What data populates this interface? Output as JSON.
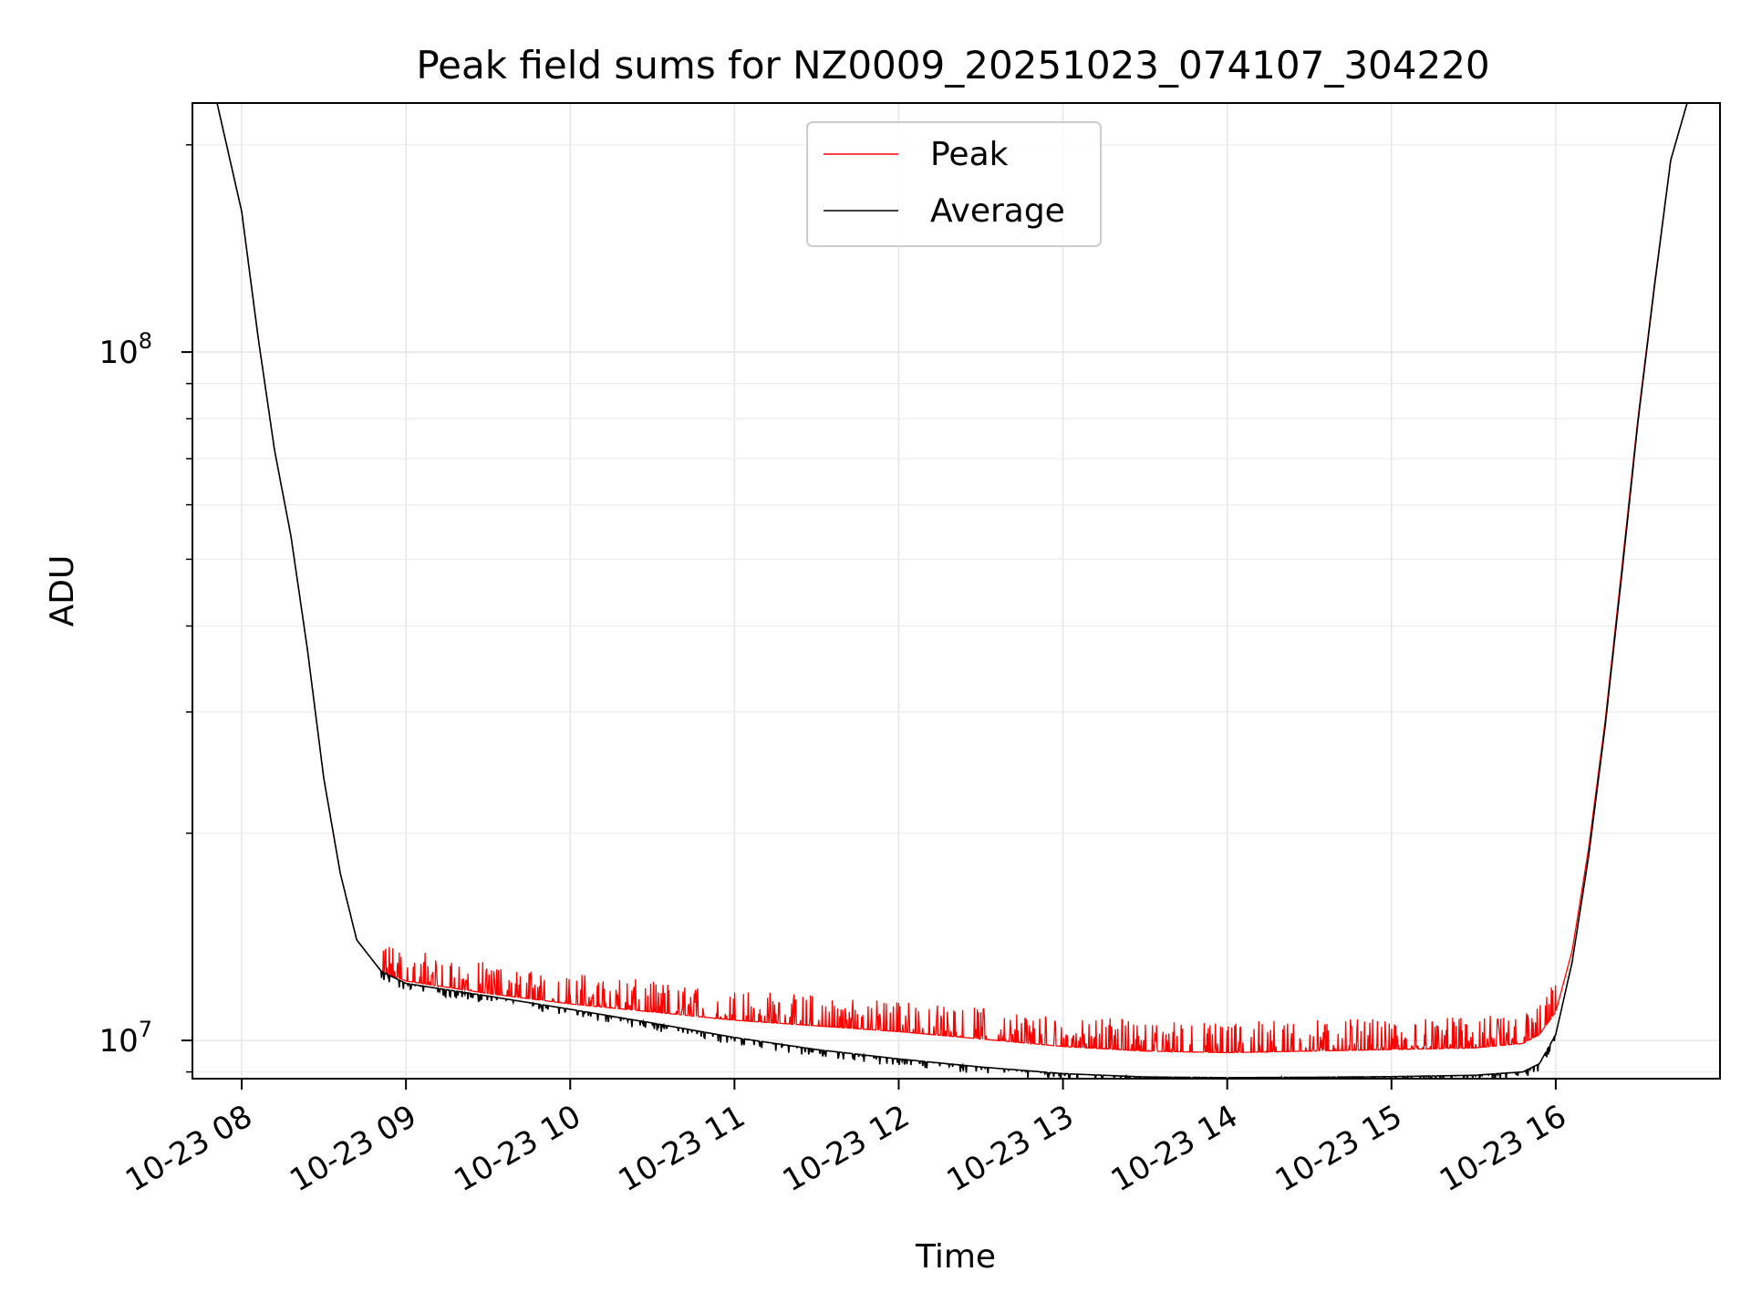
{
  "chart_data": {
    "type": "line",
    "title": "Peak field sums for NZ0009_20251023_074107_304220",
    "xlabel": "Time",
    "ylabel": "ADU",
    "yscale": "log",
    "xlim": [
      7.7,
      17.0
    ],
    "ylim": [
      8800000,
      230000000
    ],
    "x_ticks": [
      {
        "value": 8,
        "label": "10-23 08"
      },
      {
        "value": 9,
        "label": "10-23 09"
      },
      {
        "value": 10,
        "label": "10-23 10"
      },
      {
        "value": 11,
        "label": "10-23 11"
      },
      {
        "value": 12,
        "label": "10-23 12"
      },
      {
        "value": 13,
        "label": "10-23 13"
      },
      {
        "value": 14,
        "label": "10-23 14"
      },
      {
        "value": 15,
        "label": "10-23 15"
      },
      {
        "value": 16,
        "label": "10-23 16"
      }
    ],
    "y_ticks": [
      {
        "value": 10000000,
        "base": "10",
        "exp": "7"
      },
      {
        "value": 100000000,
        "base": "10",
        "exp": "8"
      }
    ],
    "y_minor_ticks": [
      9000000,
      20000000,
      30000000,
      40000000,
      50000000,
      60000000,
      70000000,
      80000000,
      90000000,
      200000000
    ],
    "grid": true,
    "legend_position": "upper-center",
    "series": [
      {
        "name": "Peak",
        "color": "#ff0000",
        "x": [
          7.7,
          7.85,
          8.0,
          8.1,
          8.2,
          8.3,
          8.4,
          8.5,
          8.6,
          8.7,
          8.85,
          9.0,
          9.5,
          10.0,
          10.5,
          11.0,
          11.5,
          12.0,
          12.5,
          13.0,
          13.5,
          14.0,
          14.5,
          15.0,
          15.5,
          15.8,
          15.9,
          16.0,
          16.1,
          16.2,
          16.3,
          16.4,
          16.5,
          16.6,
          16.7,
          16.8,
          17.0
        ],
        "y": [
          230000000,
          230000000,
          160000000,
          105000000,
          72000000,
          54000000,
          37000000,
          24000000,
          17500000,
          14000000,
          12600000,
          12200000,
          11700000,
          11300000,
          11000000,
          10700000,
          10500000,
          10300000,
          10050000,
          9800000,
          9650000,
          9600000,
          9650000,
          9700000,
          9750000,
          9900000,
          10200000,
          11000000,
          13500000,
          19000000,
          29000000,
          48000000,
          80000000,
          125000000,
          190000000,
          230000000,
          230000000
        ]
      },
      {
        "name": "Average",
        "color": "#000000",
        "x": [
          7.7,
          7.85,
          8.0,
          8.1,
          8.2,
          8.3,
          8.4,
          8.5,
          8.6,
          8.7,
          8.85,
          9.0,
          9.5,
          10.0,
          10.5,
          11.0,
          11.5,
          12.0,
          12.5,
          13.0,
          13.5,
          14.0,
          14.5,
          15.0,
          15.5,
          15.8,
          15.9,
          16.0,
          16.1,
          16.2,
          16.3,
          16.4,
          16.5,
          16.6,
          16.7,
          16.8,
          17.0
        ],
        "y": [
          230000000,
          230000000,
          160000000,
          105000000,
          72000000,
          54000000,
          37000000,
          24000000,
          17500000,
          14000000,
          12600000,
          12100000,
          11600000,
          11100000,
          10600000,
          10100000,
          9700000,
          9400000,
          9150000,
          8950000,
          8850000,
          8830000,
          8840000,
          8860000,
          8900000,
          9000000,
          9250000,
          10200000,
          13000000,
          18500000,
          28500000,
          47000000,
          79000000,
          124000000,
          190000000,
          230000000,
          230000000
        ]
      }
    ]
  }
}
